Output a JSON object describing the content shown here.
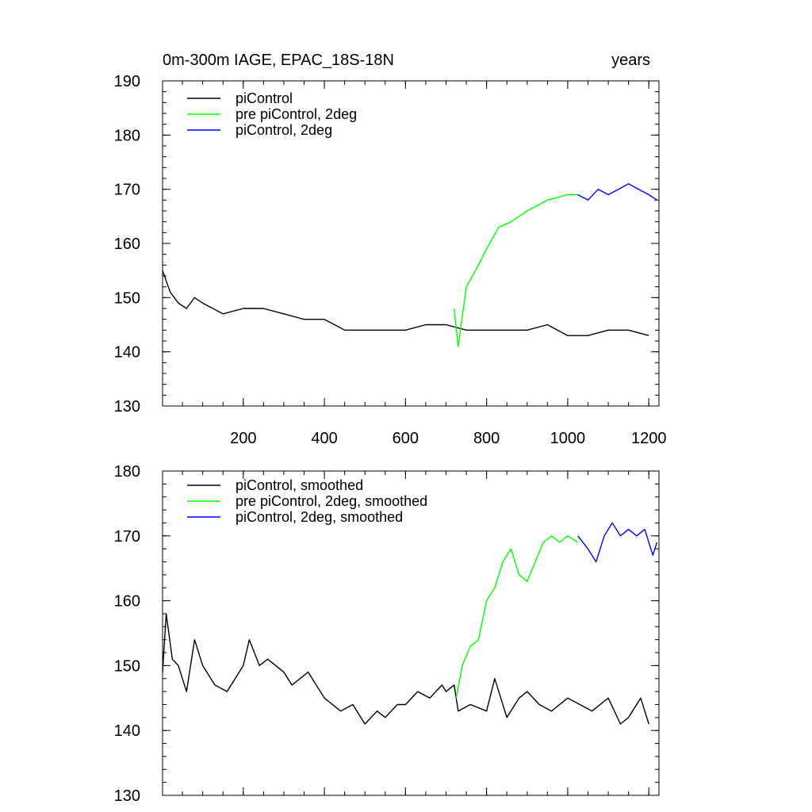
{
  "chart_data": [
    {
      "type": "line",
      "title": "0m-300m IAGE, EPAC_18S-18N",
      "units": "years",
      "xlabel": "",
      "ylabel": "",
      "xlim": [
        1,
        1225
      ],
      "ylim": [
        130,
        190
      ],
      "x_ticks": [
        200,
        400,
        600,
        800,
        1000,
        1200
      ],
      "y_ticks": [
        130,
        140,
        150,
        160,
        170,
        180,
        190
      ],
      "grid": false,
      "legend_position": "top-left",
      "series": [
        {
          "name": "piControl",
          "color": "#000000",
          "points": [
            [
              1,
              155
            ],
            [
              20,
              151
            ],
            [
              40,
              149
            ],
            [
              60,
              148
            ],
            [
              80,
              150
            ],
            [
              100,
              149
            ],
            [
              150,
              147
            ],
            [
              200,
              148
            ],
            [
              250,
              148
            ],
            [
              300,
              147
            ],
            [
              350,
              146
            ],
            [
              400,
              146
            ],
            [
              450,
              144
            ],
            [
              500,
              144
            ],
            [
              550,
              144
            ],
            [
              600,
              144
            ],
            [
              650,
              145
            ],
            [
              700,
              145
            ],
            [
              750,
              144
            ],
            [
              800,
              144
            ],
            [
              850,
              144
            ],
            [
              900,
              144
            ],
            [
              950,
              145
            ],
            [
              1000,
              143
            ],
            [
              1050,
              143
            ],
            [
              1100,
              144
            ],
            [
              1150,
              144
            ],
            [
              1200,
              143
            ]
          ]
        },
        {
          "name": "pre piControl, 2deg",
          "color": "#00ff00",
          "points": [
            [
              720,
              148
            ],
            [
              730,
              141
            ],
            [
              750,
              152
            ],
            [
              780,
              156
            ],
            [
              800,
              159
            ],
            [
              830,
              163
            ],
            [
              860,
              164
            ],
            [
              900,
              166
            ],
            [
              950,
              168
            ],
            [
              1000,
              169
            ],
            [
              1025,
              169
            ]
          ]
        },
        {
          "name": "piControl, 2deg",
          "color": "#0000ff",
          "points": [
            [
              1025,
              169
            ],
            [
              1050,
              168
            ],
            [
              1075,
              170
            ],
            [
              1100,
              169
            ],
            [
              1125,
              170
            ],
            [
              1150,
              171
            ],
            [
              1175,
              170
            ],
            [
              1200,
              169
            ],
            [
              1220,
              168
            ]
          ]
        }
      ]
    },
    {
      "type": "line",
      "title": "",
      "xlabel": "",
      "ylabel": "",
      "xlim": [
        1,
        1225
      ],
      "ylim": [
        130,
        180
      ],
      "x_ticks": [
        200,
        400,
        600,
        800,
        1000,
        1200
      ],
      "y_ticks": [
        130,
        140,
        150,
        160,
        170,
        180
      ],
      "grid": false,
      "legend_position": "top-left",
      "series": [
        {
          "name": "piControl, smoothed",
          "color": "#000000",
          "points": [
            [
              1,
              149
            ],
            [
              10,
              158
            ],
            [
              25,
              151
            ],
            [
              40,
              150
            ],
            [
              60,
              146
            ],
            [
              80,
              154
            ],
            [
              100,
              150
            ],
            [
              130,
              147
            ],
            [
              160,
              146
            ],
            [
              200,
              150
            ],
            [
              215,
              154
            ],
            [
              240,
              150
            ],
            [
              260,
              151
            ],
            [
              300,
              149
            ],
            [
              320,
              147
            ],
            [
              360,
              149
            ],
            [
              400,
              145
            ],
            [
              420,
              144
            ],
            [
              440,
              143
            ],
            [
              470,
              144
            ],
            [
              500,
              141
            ],
            [
              530,
              143
            ],
            [
              550,
              142
            ],
            [
              580,
              144
            ],
            [
              600,
              144
            ],
            [
              630,
              146
            ],
            [
              660,
              145
            ],
            [
              690,
              147
            ],
            [
              700,
              146
            ],
            [
              720,
              147
            ],
            [
              730,
              143
            ],
            [
              760,
              144
            ],
            [
              800,
              143
            ],
            [
              820,
              148
            ],
            [
              850,
              142
            ],
            [
              880,
              145
            ],
            [
              900,
              146
            ],
            [
              930,
              144
            ],
            [
              960,
              143
            ],
            [
              1000,
              145
            ],
            [
              1030,
              144
            ],
            [
              1060,
              143
            ],
            [
              1100,
              145
            ],
            [
              1130,
              141
            ],
            [
              1150,
              142
            ],
            [
              1180,
              145
            ],
            [
              1200,
              141
            ]
          ]
        },
        {
          "name": "pre piControl, 2deg, smoothed",
          "color": "#00ff00",
          "points": [
            [
              725,
              145
            ],
            [
              740,
              150
            ],
            [
              760,
              153
            ],
            [
              780,
              154
            ],
            [
              800,
              160
            ],
            [
              820,
              162
            ],
            [
              840,
              166
            ],
            [
              860,
              168
            ],
            [
              880,
              164
            ],
            [
              900,
              163
            ],
            [
              920,
              166
            ],
            [
              940,
              169
            ],
            [
              960,
              170
            ],
            [
              980,
              169
            ],
            [
              1000,
              170
            ],
            [
              1025,
              169
            ]
          ]
        },
        {
          "name": "piControl, 2deg, smoothed",
          "color": "#0000ff",
          "points": [
            [
              1025,
              170
            ],
            [
              1050,
              168
            ],
            [
              1070,
              166
            ],
            [
              1090,
              170
            ],
            [
              1110,
              172
            ],
            [
              1130,
              170
            ],
            [
              1150,
              171
            ],
            [
              1170,
              170
            ],
            [
              1190,
              171
            ],
            [
              1210,
              167
            ],
            [
              1220,
              169
            ]
          ]
        }
      ]
    }
  ]
}
